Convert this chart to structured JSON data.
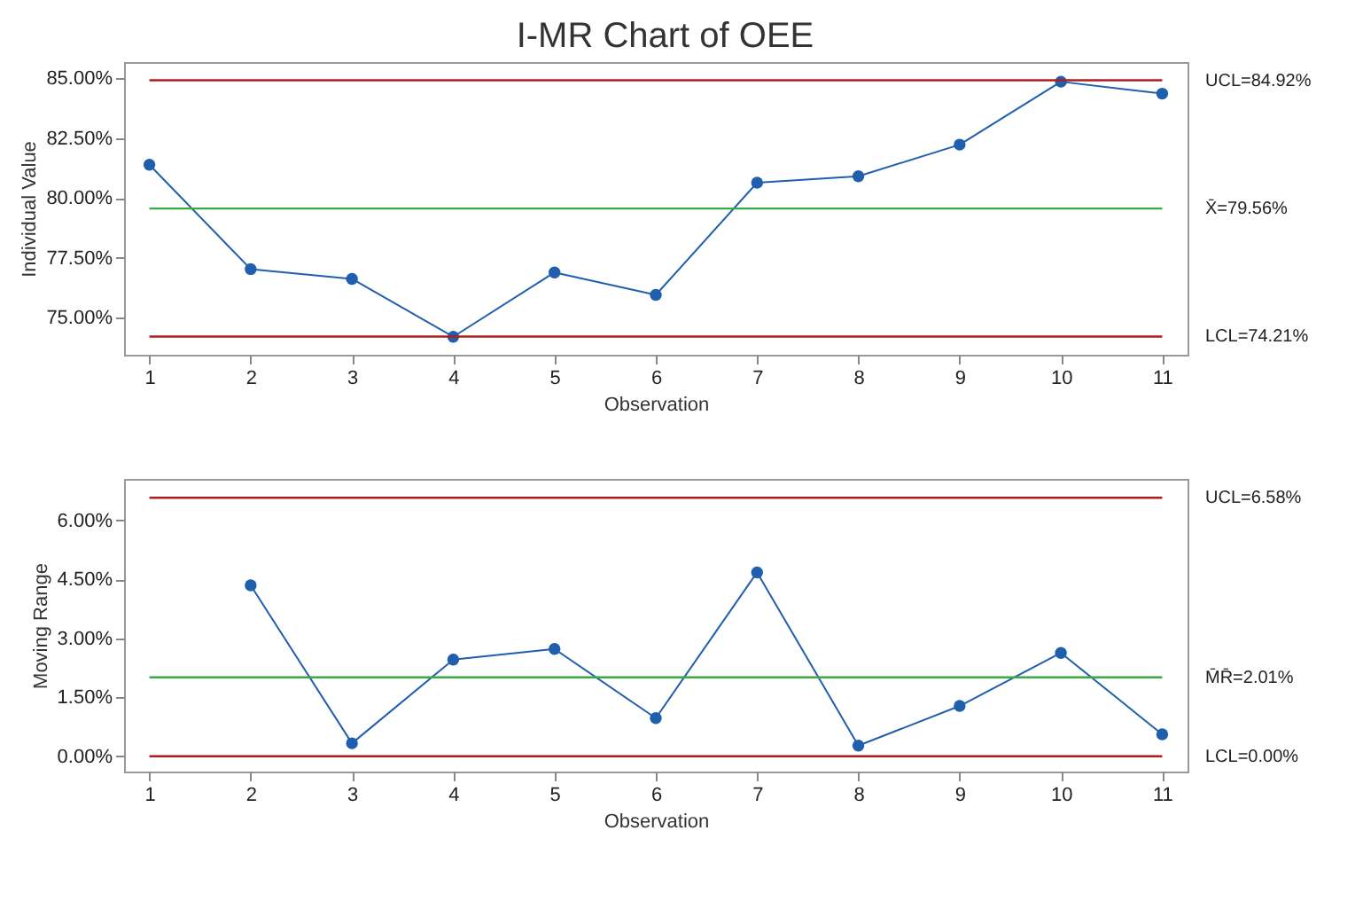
{
  "chart_data": [
    {
      "type": "line",
      "title": "I-MR Chart of OEE",
      "xlabel": "Observation",
      "ylabel": "Individual Value",
      "x": [
        1,
        2,
        3,
        4,
        5,
        6,
        7,
        8,
        9,
        10,
        11
      ],
      "series": [
        {
          "color": "#1f5fad",
          "values": [
            81.39,
            77.03,
            76.62,
            74.2,
            76.89,
            75.95,
            80.64,
            80.91,
            82.23,
            84.86,
            84.36
          ]
        }
      ],
      "xlim": [
        0.75,
        11.25
      ],
      "xticks": [
        1,
        2,
        3,
        4,
        5,
        6,
        7,
        8,
        9,
        10,
        11
      ],
      "ylim": [
        73.45,
        85.68
      ],
      "yticks": [
        {
          "value": 75,
          "label": "75.00%"
        },
        {
          "value": 77.5,
          "label": "77.50%"
        },
        {
          "value": 80,
          "label": "80.00%"
        },
        {
          "value": 82.5,
          "label": "82.50%"
        },
        {
          "value": 85,
          "label": "85.00%"
        }
      ],
      "ref_lines": [
        {
          "axis": "y",
          "value": 84.92,
          "label": "UCL=84.92%",
          "color": "#b01c1c"
        },
        {
          "axis": "y",
          "value": 79.56,
          "label": "X̄=79.56%",
          "color": "#3aa845"
        },
        {
          "axis": "y",
          "value": 74.21,
          "label": "LCL=74.21%",
          "color": "#b01c1c"
        }
      ],
      "grid": false,
      "marker": "circle",
      "line_style": "solid"
    },
    {
      "type": "line",
      "xlabel": "Observation",
      "ylabel": "Moving Range",
      "series": [
        {
          "color": "#1f5fad",
          "x": [
            2,
            3,
            4,
            5,
            6,
            7,
            8,
            9,
            10,
            11
          ],
          "values": [
            4.35,
            0.33,
            2.46,
            2.73,
            0.97,
            4.68,
            0.27,
            1.28,
            2.63,
            0.56
          ]
        }
      ],
      "xlim": [
        0.75,
        11.25
      ],
      "xticks": [
        1,
        2,
        3,
        4,
        5,
        6,
        7,
        8,
        9,
        10,
        11
      ],
      "ylim": [
        -0.39,
        7.06
      ],
      "yticks": [
        {
          "value": 0,
          "label": "0.00%"
        },
        {
          "value": 1.5,
          "label": "1.50%"
        },
        {
          "value": 3,
          "label": "3.00%"
        },
        {
          "value": 4.5,
          "label": "4.50%"
        },
        {
          "value": 6,
          "label": "6.00%"
        }
      ],
      "ref_lines": [
        {
          "axis": "y",
          "value": 6.58,
          "label": "UCL=6.58%",
          "color": "#b01c1c"
        },
        {
          "axis": "y",
          "value": 2.01,
          "label": "M̄R̄=2.01%",
          "color": "#3aa845"
        },
        {
          "axis": "y",
          "value": 0,
          "label": "LCL=0.00%",
          "color": "#b01c1c"
        }
      ],
      "grid": false,
      "marker": "circle",
      "line_style": "solid"
    }
  ]
}
